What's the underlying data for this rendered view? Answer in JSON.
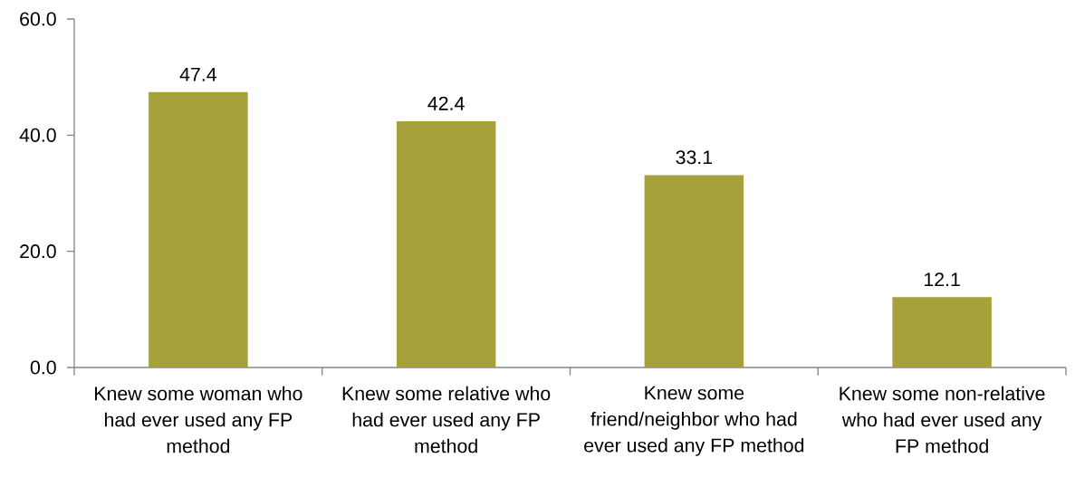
{
  "chart_data": {
    "type": "bar",
    "categories": [
      "Knew some woman who had ever used any FP method",
      "Knew some relative who had ever used any FP method",
      "Knew some friend/neighbor who had ever used any FP method",
      "Knew some non-relative who had ever used any FP method"
    ],
    "values": [
      47.4,
      42.4,
      33.1,
      12.1
    ],
    "color": "#a6a13a",
    "ylim": [
      0,
      60
    ],
    "yticks": [
      {
        "value": 0,
        "label": "0.0"
      },
      {
        "value": 20,
        "label": "20.0"
      },
      {
        "value": 40,
        "label": "40.0"
      },
      {
        "value": 60,
        "label": "60.0"
      }
    ],
    "data_labels": true
  }
}
